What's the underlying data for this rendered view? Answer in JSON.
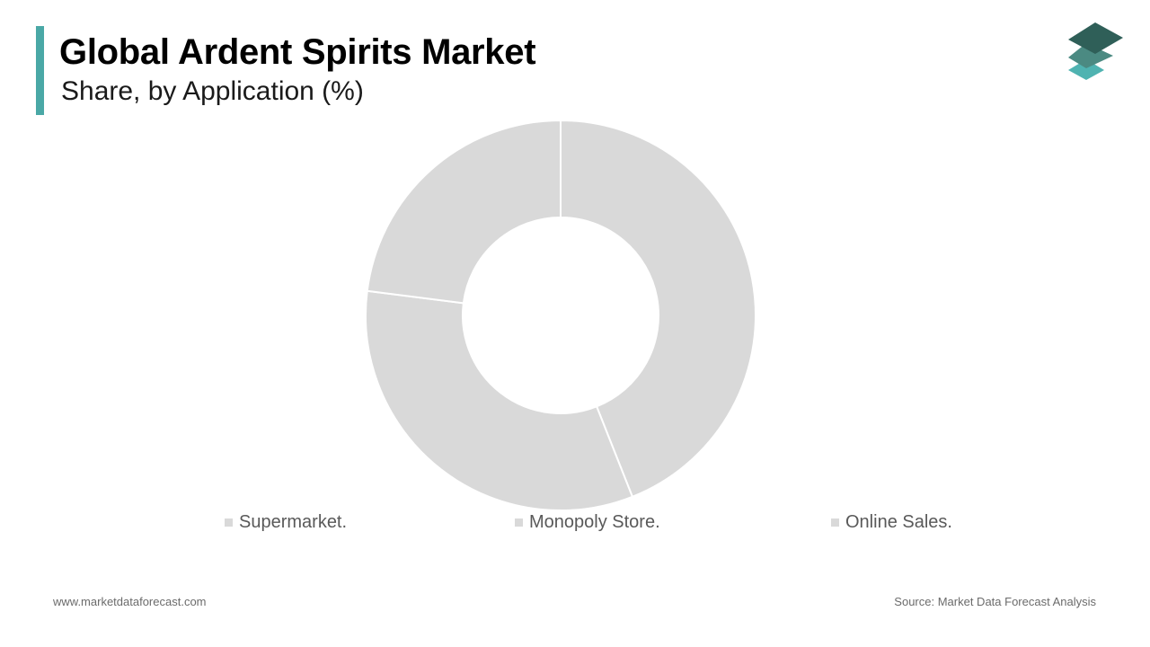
{
  "header": {
    "title": "Global Ardent Spirits Market",
    "subtitle": "Share, by Application (%)"
  },
  "colors": {
    "accent": "#4aa8a6",
    "slice": "#d9d9d9",
    "logo_dark": "#2f5f58",
    "logo_mid": "#4b8a82",
    "logo_light": "#4fb3b1"
  },
  "chart_data": {
    "type": "pie",
    "donut": true,
    "categories": [
      "Supermarket.",
      "Monopoly Store.",
      "Online Sales."
    ],
    "values": [
      44,
      33,
      23
    ],
    "legend_position": "bottom"
  },
  "footer": {
    "website": "www.marketdataforecast.com",
    "source": "Source: Market Data Forecast Analysis"
  }
}
